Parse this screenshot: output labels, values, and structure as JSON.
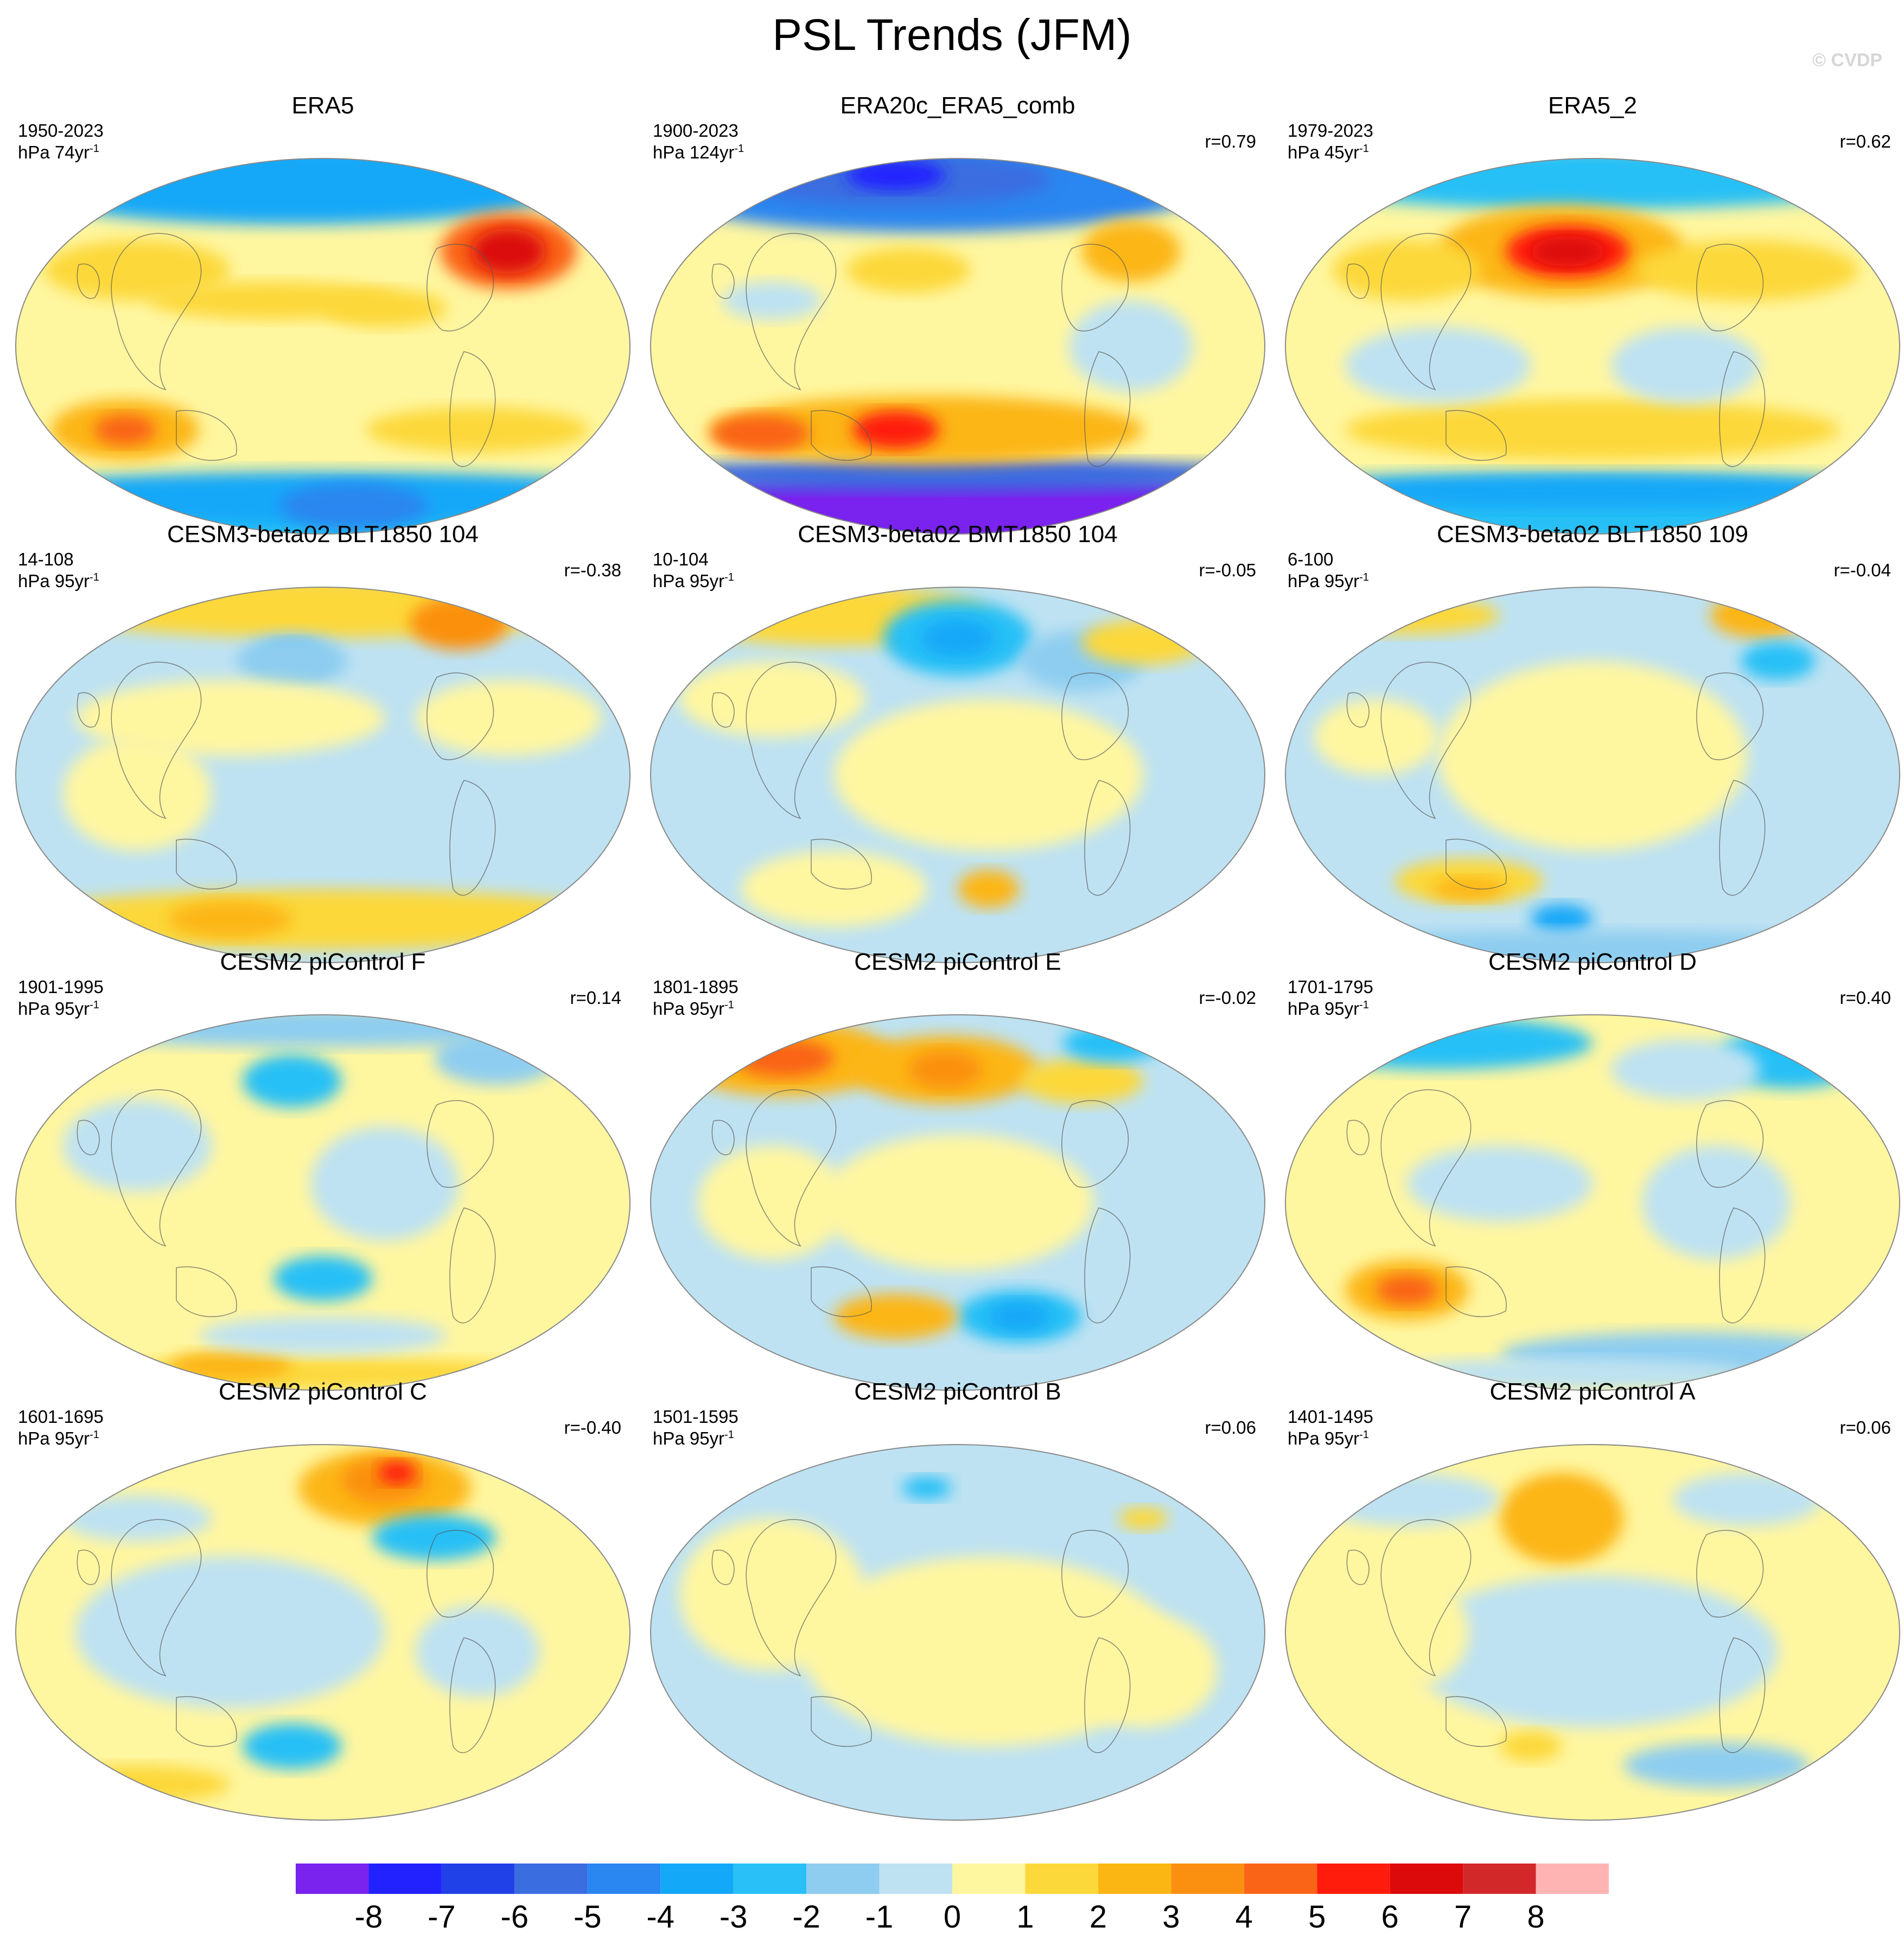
{
  "title": "PSL Trends (JFM)",
  "watermark": "© CVDP",
  "panels": [
    {
      "title": "ERA5",
      "period": "1950-2023",
      "units_base": "hPa 74yr",
      "units_exp": "-1",
      "corr": "",
      "pattern": "era5"
    },
    {
      "title": "ERA20c_ERA5_comb",
      "period": "1900-2023",
      "units_base": "hPa 124yr",
      "units_exp": "-1",
      "corr": "r=0.79",
      "pattern": "era20c"
    },
    {
      "title": "ERA5_2",
      "period": "1979-2023",
      "units_base": "hPa 45yr",
      "units_exp": "-1",
      "corr": "r=0.62",
      "pattern": "era5_2"
    },
    {
      "title": "CESM3-beta02 BLT1850 104",
      "period": "14-108",
      "units_base": "hPa 95yr",
      "units_exp": "-1",
      "corr": "r=-0.38",
      "pattern": "blt104"
    },
    {
      "title": "CESM3-beta02 BMT1850 104",
      "period": "10-104",
      "units_base": "hPa 95yr",
      "units_exp": "-1",
      "corr": "r=-0.05",
      "pattern": "bmt104"
    },
    {
      "title": "CESM3-beta02 BLT1850 109",
      "period": "6-100",
      "units_base": "hPa 95yr",
      "units_exp": "-1",
      "corr": "r=-0.04",
      "pattern": "blt109"
    },
    {
      "title": "CESM2 piControl F",
      "period": "1901-1995",
      "units_base": "hPa 95yr",
      "units_exp": "-1",
      "corr": "r=0.14",
      "pattern": "picF"
    },
    {
      "title": "CESM2 piControl E",
      "period": "1801-1895",
      "units_base": "hPa 95yr",
      "units_exp": "-1",
      "corr": "r=-0.02",
      "pattern": "picE"
    },
    {
      "title": "CESM2 piControl D",
      "period": "1701-1795",
      "units_base": "hPa 95yr",
      "units_exp": "-1",
      "corr": "r=0.40",
      "pattern": "picD"
    },
    {
      "title": "CESM2 piControl C",
      "period": "1601-1695",
      "units_base": "hPa 95yr",
      "units_exp": "-1",
      "corr": "r=-0.40",
      "pattern": "picC"
    },
    {
      "title": "CESM2 piControl B",
      "period": "1501-1595",
      "units_base": "hPa 95yr",
      "units_exp": "-1",
      "corr": "r=0.06",
      "pattern": "picB"
    },
    {
      "title": "CESM2 piControl A",
      "period": "1401-1495",
      "units_base": "hPa 95yr",
      "units_exp": "-1",
      "corr": "r=0.06",
      "pattern": "picA"
    }
  ],
  "colorbar": {
    "labels": [
      "-8",
      "-7",
      "-6",
      "-5",
      "-4",
      "-3",
      "-2",
      "-1",
      "0",
      "1",
      "2",
      "3",
      "4",
      "5",
      "6",
      "7",
      "8"
    ],
    "colors": [
      "#7a22ee",
      "#2222ff",
      "#2040e8",
      "#3a6de0",
      "#2a86f0",
      "#14a8f8",
      "#28c0f6",
      "#8ecdf0",
      "#bee2f2",
      "#fff6a0",
      "#fcd83a",
      "#fcb614",
      "#fb9010",
      "#fa6416",
      "#ff1c0c",
      "#dc0a0a",
      "#d2282a",
      "#ffb4b4"
    ]
  },
  "chart_data": {
    "type": "heatmap",
    "title": "PSL Trends (JFM)",
    "projection": "Robinson-like global maps, 4 rows x 3 columns",
    "contour_levels": [
      -8,
      -7,
      -6,
      -5,
      -4,
      -3,
      -2,
      -1,
      0,
      1,
      2,
      3,
      4,
      5,
      6,
      7,
      8
    ],
    "panels": [
      {
        "name": "ERA5",
        "period": "1950-2023",
        "r": null
      },
      {
        "name": "ERA20c_ERA5_comb",
        "period": "1900-2023",
        "r": 0.79
      },
      {
        "name": "ERA5_2",
        "period": "1979-2023",
        "r": 0.62
      },
      {
        "name": "CESM3-beta02 BLT1850 104",
        "period": "14-108",
        "r": -0.38
      },
      {
        "name": "CESM3-beta02 BMT1850 104",
        "period": "10-104",
        "r": -0.05
      },
      {
        "name": "CESM3-beta02 BLT1850 109",
        "period": "6-100",
        "r": -0.04
      },
      {
        "name": "CESM2 piControl F",
        "period": "1901-1995",
        "r": 0.14
      },
      {
        "name": "CESM2 piControl E",
        "period": "1801-1895",
        "r": -0.02
      },
      {
        "name": "CESM2 piControl D",
        "period": "1701-1795",
        "r": 0.4
      },
      {
        "name": "CESM2 piControl C",
        "period": "1601-1695",
        "r": -0.4
      },
      {
        "name": "CESM2 piControl B",
        "period": "1501-1595",
        "r": 0.06
      },
      {
        "name": "CESM2 piControl A",
        "period": "1401-1495",
        "r": 0.06
      }
    ]
  }
}
